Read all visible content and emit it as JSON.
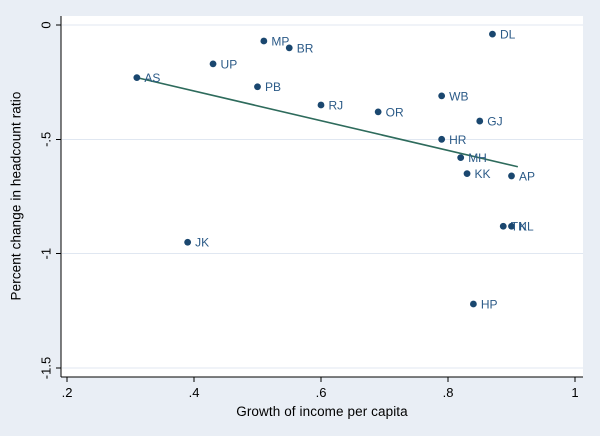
{
  "chart_data": {
    "type": "scatter",
    "title": "",
    "xlabel": "Growth of income per capita",
    "ylabel": "Percent change in headcount ratio",
    "xlim": [
      0.2,
      1
    ],
    "ylim": [
      -1.5,
      0
    ],
    "grid": "horizontal-gridlines-only",
    "legend_position": "none",
    "x_ticks": [
      {
        "value": 0.2,
        "label": ".2"
      },
      {
        "value": 0.4,
        "label": ".4"
      },
      {
        "value": 0.6,
        "label": ".6"
      },
      {
        "value": 0.8,
        "label": ".8"
      },
      {
        "value": 1,
        "label": "1"
      }
    ],
    "y_ticks": [
      {
        "value": 0,
        "label": "0"
      },
      {
        "value": -0.5,
        "label": "-.5"
      },
      {
        "value": -1,
        "label": "-1"
      },
      {
        "value": -1.5,
        "label": "-1.5"
      }
    ],
    "points": [
      {
        "label": "AS",
        "x": 0.31,
        "y": -0.23
      },
      {
        "label": "UP",
        "x": 0.43,
        "y": -0.17
      },
      {
        "label": "MP",
        "x": 0.51,
        "y": -0.07
      },
      {
        "label": "BR",
        "x": 0.55,
        "y": -0.1
      },
      {
        "label": "PB",
        "x": 0.5,
        "y": -0.27
      },
      {
        "label": "RJ",
        "x": 0.6,
        "y": -0.35
      },
      {
        "label": "OR",
        "x": 0.69,
        "y": -0.38
      },
      {
        "label": "WB",
        "x": 0.79,
        "y": -0.31
      },
      {
        "label": "DL",
        "x": 0.87,
        "y": -0.04
      },
      {
        "label": "GJ",
        "x": 0.85,
        "y": -0.42
      },
      {
        "label": "HR",
        "x": 0.79,
        "y": -0.5
      },
      {
        "label": "MH",
        "x": 0.82,
        "y": -0.58
      },
      {
        "label": "KK",
        "x": 0.83,
        "y": -0.65
      },
      {
        "label": "AP",
        "x": 0.9,
        "y": -0.66
      },
      {
        "label": "TN",
        "x": 0.887,
        "y": -0.88
      },
      {
        "label": "KL",
        "x": 0.9,
        "y": -0.88
      },
      {
        "label": "JK",
        "x": 0.39,
        "y": -0.95
      },
      {
        "label": "HP",
        "x": 0.84,
        "y": -1.22
      }
    ],
    "fit_line": {
      "name": "linear-fit",
      "x1": 0.31,
      "y1": -0.23,
      "x2": 0.91,
      "y2": -0.62
    },
    "colors": {
      "marker": "#1a476f",
      "marker_label": "#2b5a87",
      "fit_line": "#2e6b5c",
      "background": "#e9eef5",
      "plot_background": "#ffffff",
      "gridline": "#e0e7f1",
      "axis": "#000000"
    }
  }
}
